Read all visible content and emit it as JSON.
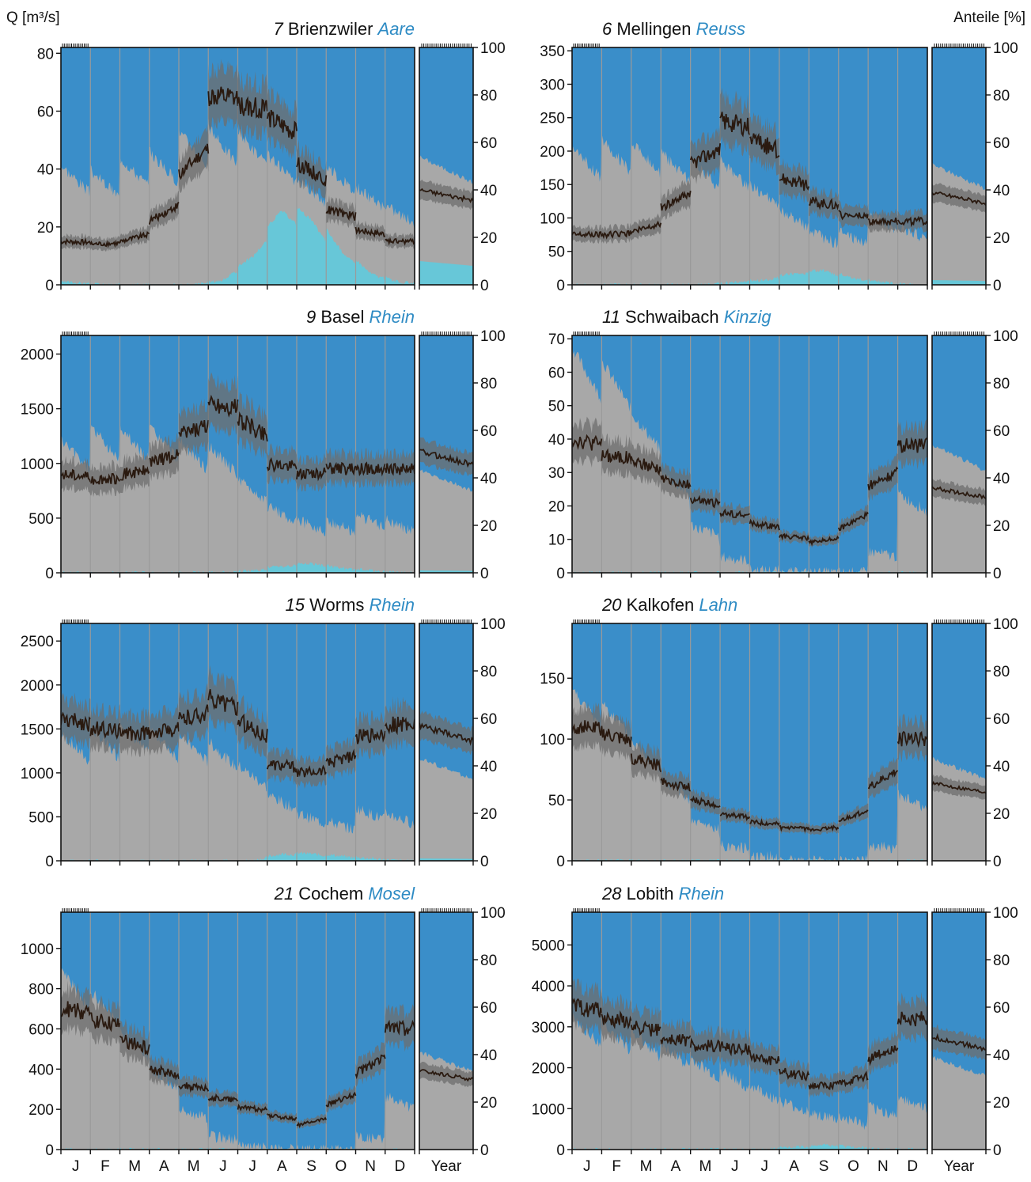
{
  "figure": {
    "y_left_unit": "Q [m³/s]",
    "y_right_unit": "Anteile [%]",
    "months": [
      "J",
      "F",
      "M",
      "A",
      "M",
      "J",
      "J",
      "A",
      "S",
      "O",
      "N",
      "D"
    ],
    "year_label": "Year",
    "right_ticks": [
      0,
      20,
      40,
      60,
      80,
      100
    ],
    "colors": {
      "rain_share": "#3a8ec9",
      "snow_share": "#a8a8a8",
      "ice_share": "#67c7d8",
      "discharge_line": "#2a1a10",
      "discharge_band": "#6e6e6e",
      "title_river": "#2e8bc4"
    }
  },
  "chart_data": [
    {
      "type": "area",
      "station_no": "7",
      "station": "Brienzwiler",
      "river": "Aare",
      "column": "left",
      "ylim": [
        0,
        82
      ],
      "yticks": [
        0,
        20,
        40,
        60,
        80
      ],
      "monthly_discharge": [
        15,
        14,
        15,
        22,
        38,
        65,
        62,
        58,
        42,
        26,
        19,
        15
      ],
      "annual_discharge": 31,
      "snow_share_pct": [
        45,
        43,
        48,
        50,
        58,
        59,
        58,
        49,
        40,
        45,
        37,
        30
      ],
      "ice_share_pct": [
        1,
        0,
        0,
        0,
        0,
        2,
        12,
        32,
        28,
        15,
        5,
        1
      ],
      "year_snow_share_pct": 50,
      "year_ice_share_pct": 10
    },
    {
      "type": "area",
      "station_no": "6",
      "station": "Mellingen",
      "river": "Reuss",
      "column": "right",
      "ylim": [
        0,
        355
      ],
      "yticks": [
        0,
        50,
        100,
        150,
        200,
        250,
        300,
        350
      ],
      "monthly_discharge": [
        75,
        75,
        80,
        115,
        180,
        245,
        220,
        160,
        125,
        105,
        95,
        95
      ],
      "annual_discharge": 130,
      "snow_share_pct": [
        52,
        55,
        54,
        50,
        47,
        47,
        38,
        28,
        20,
        20,
        27,
        22
      ],
      "ice_share_pct": [
        0,
        0,
        0,
        0,
        0,
        1,
        2,
        5,
        6,
        3,
        1,
        0
      ],
      "year_snow_share_pct": 47,
      "year_ice_share_pct": 2
    },
    {
      "type": "area",
      "station_no": "9",
      "station": "Basel",
      "river": "Rhein",
      "column": "left",
      "ylim": [
        0,
        2170
      ],
      "yticks": [
        0,
        500,
        1000,
        1500,
        2000
      ],
      "monthly_discharge": [
        900,
        850,
        900,
        1000,
        1250,
        1550,
        1400,
        1000,
        900,
        950,
        950,
        950
      ],
      "annual_discharge": 1050,
      "snow_share_pct": [
        50,
        55,
        55,
        55,
        50,
        48,
        35,
        25,
        20,
        20,
        22,
        20
      ],
      "ice_share_pct": [
        0,
        0,
        0,
        0,
        0,
        0,
        1,
        3,
        4,
        2,
        1,
        0
      ],
      "year_snow_share_pct": 40,
      "year_ice_share_pct": 1
    },
    {
      "type": "area",
      "station_no": "11",
      "station": "Schwaibach",
      "river": "Kinzig",
      "column": "right",
      "ylim": [
        0,
        71
      ],
      "yticks": [
        0,
        10,
        20,
        30,
        40,
        50,
        60,
        70
      ],
      "monthly_discharge": [
        40,
        35,
        33,
        28,
        22,
        18,
        15,
        11,
        9,
        13,
        26,
        38
      ],
      "annual_discharge": 24,
      "snow_share_pct": [
        85,
        80,
        60,
        38,
        18,
        6,
        1,
        0,
        0,
        0,
        8,
        30
      ],
      "ice_share_pct": [
        0,
        0,
        0,
        0,
        0,
        0,
        0,
        0,
        0,
        0,
        0,
        0
      ],
      "year_snow_share_pct": 50,
      "year_ice_share_pct": 0
    },
    {
      "type": "area",
      "station_no": "15",
      "station": "Worms",
      "river": "Rhein",
      "column": "left",
      "ylim": [
        0,
        2700
      ],
      "yticks": [
        0,
        500,
        1000,
        1500,
        2000,
        2500
      ],
      "monthly_discharge": [
        1600,
        1500,
        1450,
        1450,
        1600,
        1850,
        1600,
        1100,
        1000,
        1100,
        1400,
        1550
      ],
      "annual_discharge": 1450,
      "snow_share_pct": [
        48,
        50,
        52,
        50,
        48,
        45,
        36,
        25,
        18,
        15,
        20,
        18
      ],
      "ice_share_pct": [
        0,
        0,
        0,
        0,
        0,
        0,
        0,
        3,
        3,
        2,
        1,
        0
      ],
      "year_snow_share_pct": 40,
      "year_ice_share_pct": 1
    },
    {
      "type": "area",
      "station_no": "20",
      "station": "Kalkofen",
      "river": "Lahn",
      "column": "right",
      "ylim": [
        0,
        195
      ],
      "yticks": [
        0,
        50,
        100,
        150
      ],
      "monthly_discharge": [
        110,
        105,
        85,
        65,
        50,
        38,
        32,
        27,
        25,
        32,
        60,
        100
      ],
      "annual_discharge": 60,
      "snow_share_pct": [
        65,
        60,
        45,
        30,
        15,
        6,
        2,
        0,
        0,
        0,
        6,
        25
      ],
      "ice_share_pct": [
        0,
        0,
        0,
        0,
        0,
        0,
        0,
        0,
        0,
        0,
        0,
        0
      ],
      "year_snow_share_pct": 40,
      "year_ice_share_pct": 0
    },
    {
      "type": "area",
      "station_no": "21",
      "station": "Cochem",
      "river": "Mosel",
      "column": "left",
      "ylim": [
        0,
        1180
      ],
      "yticks": [
        0,
        200,
        400,
        600,
        800,
        1000
      ],
      "monthly_discharge": [
        700,
        650,
        550,
        400,
        320,
        260,
        210,
        170,
        120,
        220,
        380,
        600
      ],
      "annual_discharge": 370,
      "snow_share_pct": [
        68,
        60,
        45,
        30,
        15,
        5,
        1,
        0,
        0,
        0,
        5,
        20
      ],
      "ice_share_pct": [
        0,
        0,
        0,
        0,
        0,
        0,
        0,
        0,
        0,
        0,
        0,
        0
      ],
      "year_snow_share_pct": 38,
      "year_ice_share_pct": 0
    },
    {
      "type": "area",
      "station_no": "28",
      "station": "Lobith",
      "river": "Rhein",
      "column": "right",
      "ylim": [
        0,
        5800
      ],
      "yticks": [
        0,
        1000,
        2000,
        3000,
        4000,
        5000
      ],
      "monthly_discharge": [
        3500,
        3200,
        3000,
        2700,
        2550,
        2500,
        2300,
        1900,
        1550,
        1600,
        2200,
        3200
      ],
      "annual_discharge": 2600,
      "snow_share_pct": [
        50,
        48,
        45,
        40,
        34,
        30,
        24,
        18,
        14,
        12,
        16,
        20
      ],
      "ice_share_pct": [
        0,
        0,
        0,
        0,
        0,
        0,
        0,
        1,
        2,
        1,
        0,
        0
      ],
      "year_snow_share_pct": 36,
      "year_ice_share_pct": 0
    }
  ]
}
